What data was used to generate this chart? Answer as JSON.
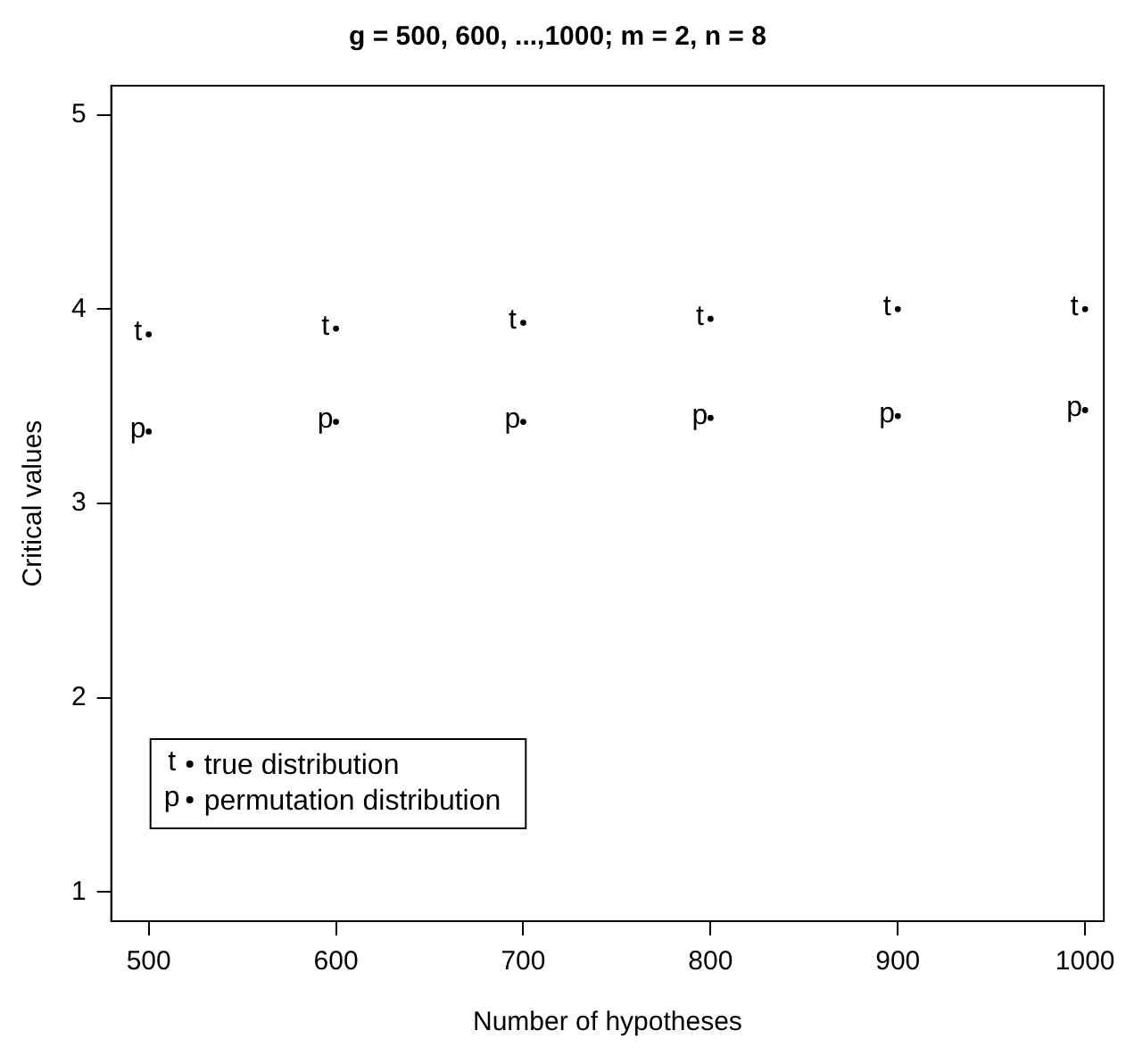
{
  "chart_data": {
    "type": "scatter",
    "title": "g = 500, 600, ...,1000; m = 2, n = 8",
    "xlabel": "Number of hypotheses",
    "ylabel": "Critical values",
    "x": [
      500,
      600,
      700,
      800,
      900,
      1000
    ],
    "series": [
      {
        "name": "true distribution",
        "color": "#000000",
        "values": [
          3.87,
          3.9,
          3.93,
          3.95,
          4.0,
          4.0
        ],
        "value_labels": [
          "t",
          "t",
          "t",
          "t",
          "t",
          "t"
        ]
      },
      {
        "name": "permutation distribution",
        "color": "#000000",
        "values": [
          3.37,
          3.42,
          3.42,
          3.44,
          3.45,
          3.48
        ],
        "value_labels": [
          "p",
          "p",
          "p",
          "p",
          "p",
          "p"
        ]
      }
    ],
    "xlim": [
      480,
      1010
    ],
    "ylim": [
      0.85,
      5.15
    ],
    "xticks": [
      500,
      600,
      700,
      800,
      900,
      1000
    ],
    "yticks": [
      1,
      2,
      3,
      4,
      5
    ],
    "grid": false,
    "legend": "bottom left",
    "marker": "circle"
  }
}
